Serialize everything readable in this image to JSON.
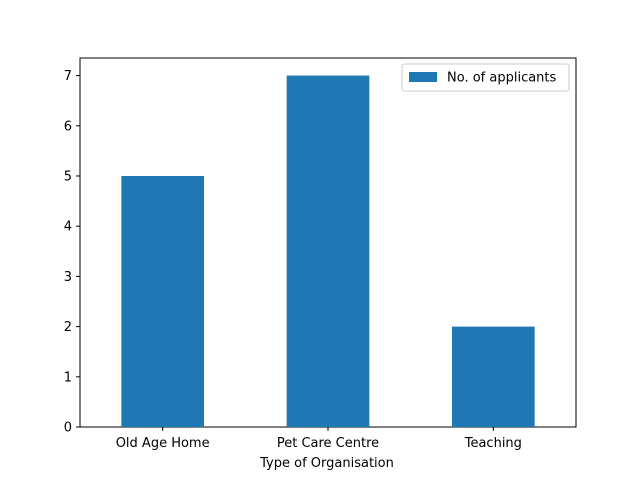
{
  "chart_data": {
    "type": "bar",
    "title": "",
    "xlabel": "Type of Organisation",
    "ylabel": "",
    "categories": [
      "Old Age Home",
      "Pet Care Centre",
      "Teaching"
    ],
    "series": [
      {
        "name": "No. of applicants",
        "values": [
          5,
          7,
          2
        ],
        "color": "#1f77b4"
      }
    ],
    "ylim": [
      0,
      7.35
    ],
    "yticks": [
      0,
      1,
      2,
      3,
      4,
      5,
      6,
      7
    ],
    "grid": false,
    "legend_position": "top-right"
  }
}
